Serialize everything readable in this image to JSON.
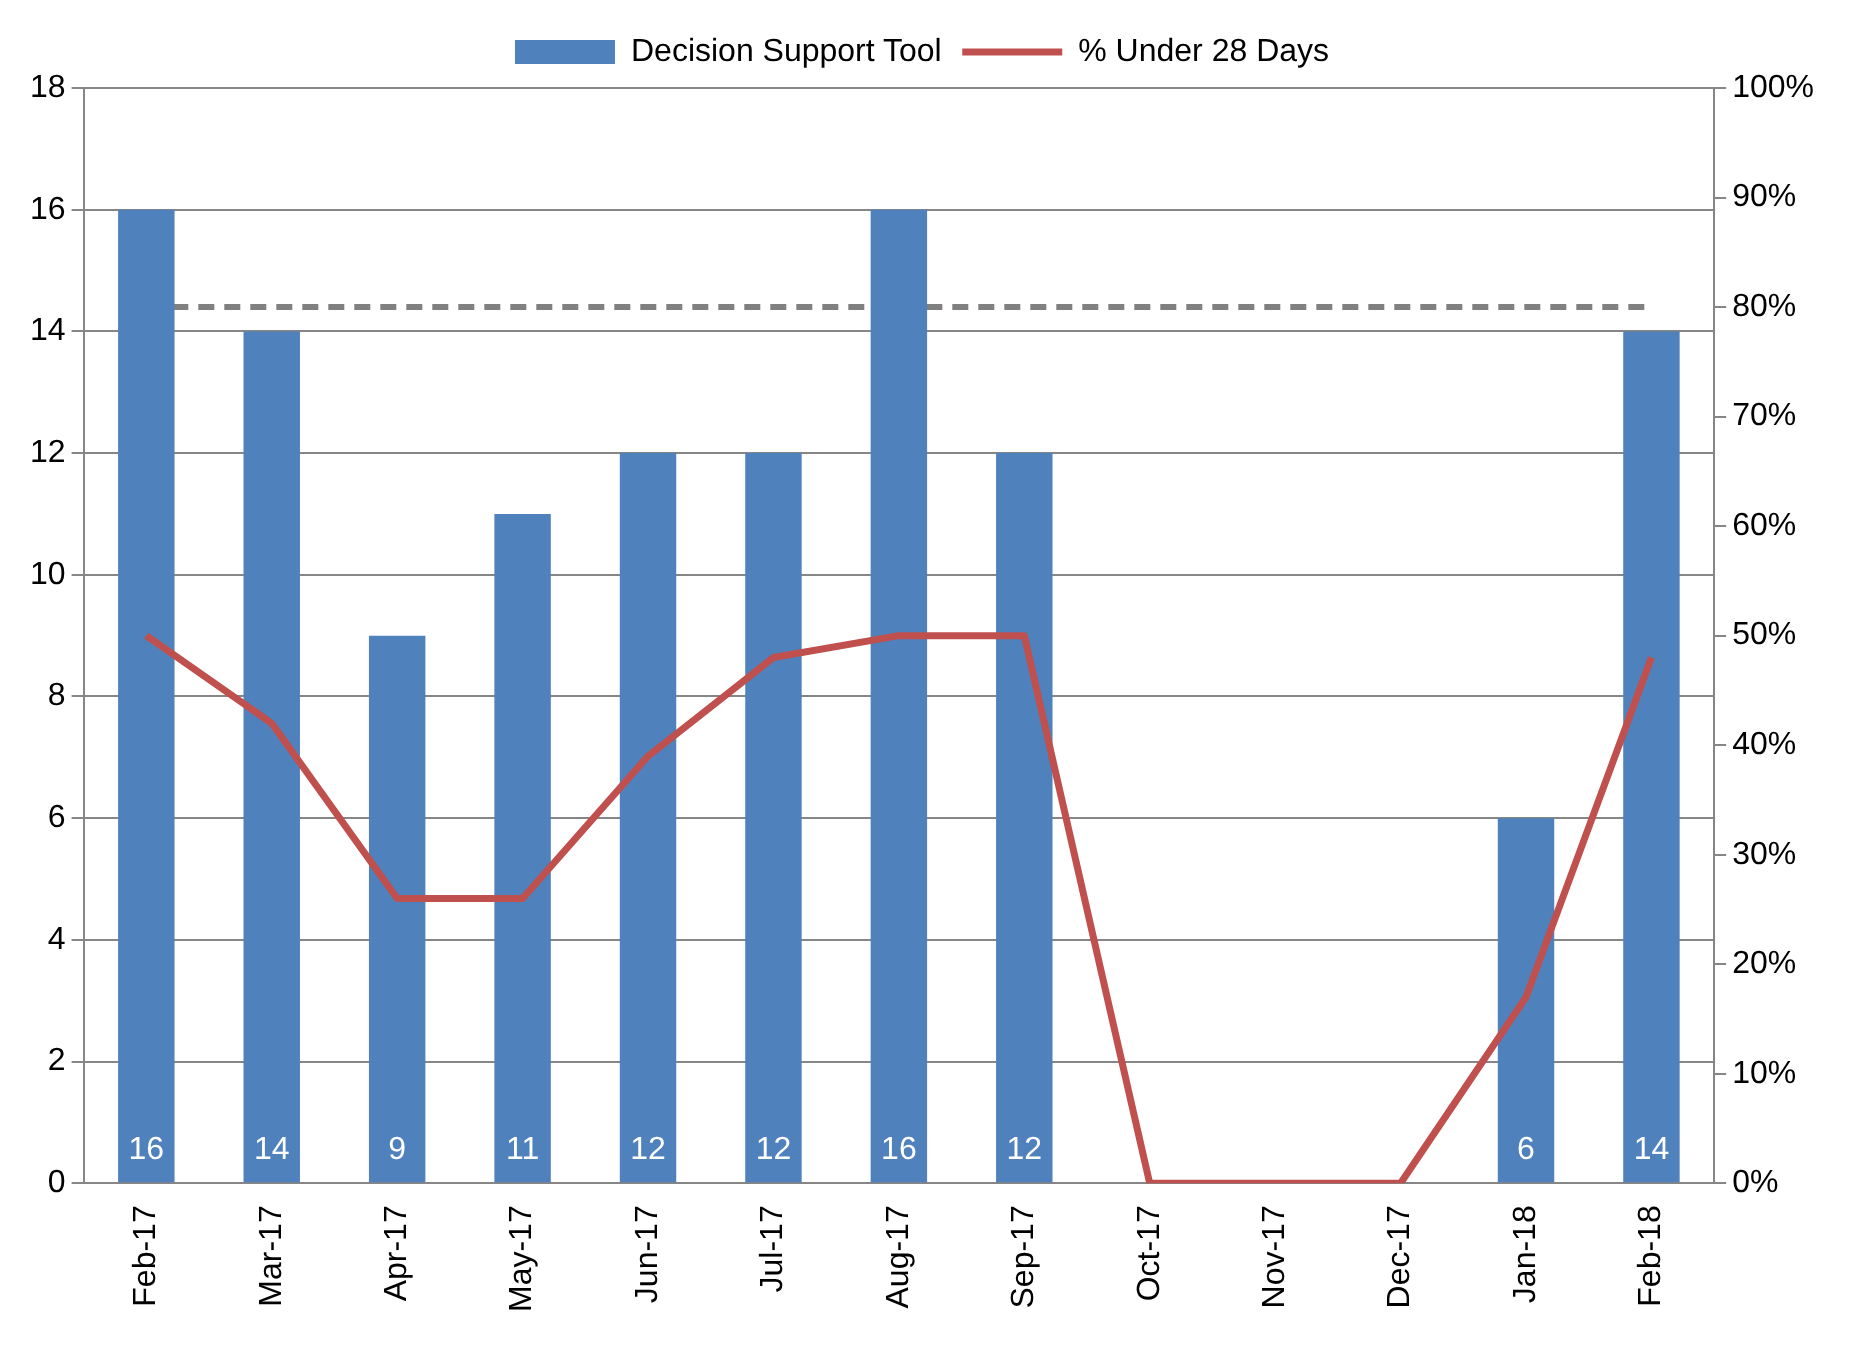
{
  "chart_data": {
    "type": "bar",
    "categories": [
      "Feb-17",
      "Mar-17",
      "Apr-17",
      "May-17",
      "Jun-17",
      "Jul-17",
      "Aug-17",
      "Sep-17",
      "Oct-17",
      "Nov-17",
      "Dec-17",
      "Jan-18",
      "Feb-18"
    ],
    "series": [
      {
        "name": "Decision Support Tool",
        "color": "#4f81bd",
        "values": [
          16,
          14,
          9,
          11,
          12,
          12,
          16,
          12,
          0,
          null,
          null,
          6,
          14
        ],
        "value_labels": [
          "16",
          "14",
          "9",
          "11",
          "12",
          "12",
          "16",
          "12",
          null,
          null,
          null,
          "6",
          "14"
        ]
      },
      {
        "name": "% Under 28 Days",
        "type": "line",
        "axis": "y2",
        "color": "#c0504d",
        "values": [
          50,
          42,
          26,
          26,
          39,
          48,
          50,
          50,
          0,
          0,
          0,
          17,
          48
        ]
      }
    ],
    "ylim": [
      0,
      18
    ],
    "yticks": [
      0,
      2,
      4,
      6,
      8,
      10,
      12,
      14,
      16,
      18
    ],
    "y2lim": [
      0,
      100
    ],
    "y2ticks": [
      {
        "value": 0,
        "label": "0%"
      },
      {
        "value": 10,
        "label": "10%"
      },
      {
        "value": 20,
        "label": "20%"
      },
      {
        "value": 30,
        "label": "30%"
      },
      {
        "value": 40,
        "label": "40%"
      },
      {
        "value": 50,
        "label": "50%"
      },
      {
        "value": 60,
        "label": "60%"
      },
      {
        "value": 70,
        "label": "70%"
      },
      {
        "value": 80,
        "label": "80%"
      },
      {
        "value": 90,
        "label": "90%"
      },
      {
        "value": 100,
        "label": "100%"
      }
    ],
    "ref_lines": [
      {
        "axis": "y2",
        "value": 80,
        "color": "#808080",
        "line_style": "dashed"
      }
    ],
    "grid": "y",
    "legend": "top"
  }
}
